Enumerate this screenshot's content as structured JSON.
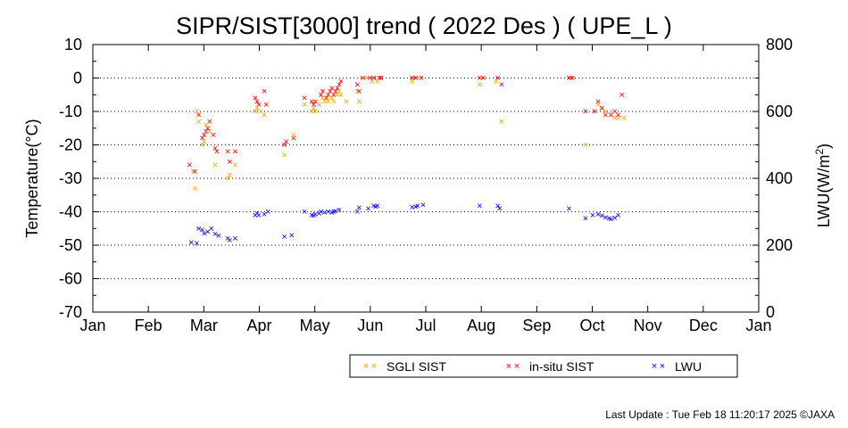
{
  "chart_data": {
    "type": "scatter",
    "title": "SIPR/SIST[3000] trend ( 2022 Des ) ( UPE_L )",
    "ylabel": "Temperature(°C)",
    "y2label_main": "LWU(W/m",
    "y2label_sup": "2",
    "y2label_end": ")",
    "ylim": [
      -70,
      10
    ],
    "y2lim": [
      0,
      800
    ],
    "y_ticks": [
      "10",
      "0",
      "-10",
      "-20",
      "-30",
      "-40",
      "-50",
      "-60",
      "-70"
    ],
    "y2_ticks": [
      "800",
      "600",
      "400",
      "200",
      "0"
    ],
    "x_ticks": [
      "Jan",
      "Feb",
      "Mar",
      "Apr",
      "May",
      "Jun",
      "Jul",
      "Aug",
      "Sep",
      "Oct",
      "Nov",
      "Dec",
      "Jan"
    ],
    "grid": "horizontal dotted",
    "legend_position": "bottom-right",
    "series": [
      {
        "name": "SGLI SIST",
        "color": "#ffa500",
        "axis": "left",
        "points": [
          [
            "2022-02-25",
            -28
          ],
          [
            "2022-02-26",
            -33
          ],
          [
            "2022-02-27",
            -10
          ],
          [
            "2022-02-28",
            -13
          ],
          [
            "2022-03-02",
            -20
          ],
          [
            "2022-03-03",
            -19
          ],
          [
            "2022-03-04",
            -14
          ],
          [
            "2022-03-06",
            -16
          ],
          [
            "2022-03-09",
            -26
          ],
          [
            "2022-03-16",
            -30
          ],
          [
            "2022-03-17",
            -29
          ],
          [
            "2022-03-20",
            -26
          ],
          [
            "2022-03-31",
            -10
          ],
          [
            "2022-04-01",
            -9
          ],
          [
            "2022-04-03",
            -10
          ],
          [
            "2022-04-05",
            -11
          ],
          [
            "2022-04-16",
            -23
          ],
          [
            "2022-04-21",
            -17
          ],
          [
            "2022-04-27",
            -8
          ],
          [
            "2022-05-01",
            -10
          ],
          [
            "2022-05-02",
            -9
          ],
          [
            "2022-05-03",
            -10
          ],
          [
            "2022-05-05",
            -8
          ],
          [
            "2022-05-07",
            -6
          ],
          [
            "2022-05-08",
            -7
          ],
          [
            "2022-05-10",
            -7
          ],
          [
            "2022-05-12",
            -6
          ],
          [
            "2022-05-13",
            -7
          ],
          [
            "2022-05-15",
            -5
          ],
          [
            "2022-05-16",
            -4
          ],
          [
            "2022-05-17",
            -5
          ],
          [
            "2022-05-20",
            -7
          ],
          [
            "2022-05-26",
            -4
          ],
          [
            "2022-05-27",
            -7
          ],
          [
            "2022-05-31",
            0
          ],
          [
            "2022-06-03",
            -1
          ],
          [
            "2022-06-04",
            0
          ],
          [
            "2022-06-06",
            -1
          ],
          [
            "2022-06-07",
            0
          ],
          [
            "2022-06-08",
            0
          ],
          [
            "2022-06-25",
            -1
          ],
          [
            "2022-06-27",
            0
          ],
          [
            "2022-06-30",
            0
          ],
          [
            "2022-08-01",
            -2
          ],
          [
            "2022-08-10",
            -1
          ],
          [
            "2022-08-13",
            -13
          ],
          [
            "2022-09-20",
            0
          ],
          [
            "2022-09-28",
            -20
          ],
          [
            "2022-10-05",
            -8
          ],
          [
            "2022-10-07",
            -9
          ],
          [
            "2022-10-09",
            -10
          ],
          [
            "2022-10-12",
            -11
          ],
          [
            "2022-10-14",
            -12
          ],
          [
            "2022-10-16",
            -12
          ],
          [
            "2022-10-19",
            -12
          ]
        ]
      },
      {
        "name": "in-situ SIST",
        "color": "#ff0000",
        "axis": "left",
        "points": [
          [
            "2022-02-23",
            -26
          ],
          [
            "2022-02-26",
            -28
          ],
          [
            "2022-02-28",
            -11
          ],
          [
            "2022-03-02",
            -18
          ],
          [
            "2022-03-03",
            -17
          ],
          [
            "2022-03-04",
            -16
          ],
          [
            "2022-03-05",
            -15
          ],
          [
            "2022-03-06",
            -13
          ],
          [
            "2022-03-08",
            -17
          ],
          [
            "2022-03-09",
            -21
          ],
          [
            "2022-03-10",
            -22
          ],
          [
            "2022-03-16",
            -22
          ],
          [
            "2022-03-17",
            -25
          ],
          [
            "2022-03-20",
            -22
          ],
          [
            "2022-03-31",
            -6
          ],
          [
            "2022-04-01",
            -7
          ],
          [
            "2022-04-02",
            -8
          ],
          [
            "2022-04-05",
            -4
          ],
          [
            "2022-04-06",
            -8
          ],
          [
            "2022-04-16",
            -20
          ],
          [
            "2022-04-17",
            -19
          ],
          [
            "2022-04-21",
            -18
          ],
          [
            "2022-04-27",
            -6
          ],
          [
            "2022-05-01",
            -7
          ],
          [
            "2022-05-02",
            -8
          ],
          [
            "2022-05-03",
            -7
          ],
          [
            "2022-05-06",
            -5
          ],
          [
            "2022-05-07",
            -4
          ],
          [
            "2022-05-09",
            -6
          ],
          [
            "2022-05-10",
            -5
          ],
          [
            "2022-05-11",
            -4
          ],
          [
            "2022-05-12",
            -3
          ],
          [
            "2022-05-13",
            -5
          ],
          [
            "2022-05-14",
            -4
          ],
          [
            "2022-05-15",
            -3
          ],
          [
            "2022-05-16",
            -2
          ],
          [
            "2022-05-17",
            -1
          ],
          [
            "2022-05-26",
            -2
          ],
          [
            "2022-05-27",
            -4
          ],
          [
            "2022-05-29",
            0
          ],
          [
            "2022-06-02",
            0
          ],
          [
            "2022-06-04",
            0
          ],
          [
            "2022-06-07",
            0
          ],
          [
            "2022-06-08",
            0
          ],
          [
            "2022-06-25",
            0
          ],
          [
            "2022-06-27",
            0
          ],
          [
            "2022-06-30",
            0
          ],
          [
            "2022-08-01",
            0
          ],
          [
            "2022-08-03",
            0
          ],
          [
            "2022-08-11",
            0
          ],
          [
            "2022-08-13",
            -2
          ],
          [
            "2022-09-19",
            0
          ],
          [
            "2022-09-21",
            0
          ],
          [
            "2022-09-28",
            -10
          ],
          [
            "2022-10-03",
            -10
          ],
          [
            "2022-10-05",
            -7
          ],
          [
            "2022-10-07",
            -9
          ],
          [
            "2022-10-09",
            -11
          ],
          [
            "2022-10-12",
            -11
          ],
          [
            "2022-10-14",
            -10
          ],
          [
            "2022-10-16",
            -11
          ],
          [
            "2022-10-18",
            -5
          ]
        ]
      },
      {
        "name": "LWU",
        "color": "#0000ff",
        "axis": "right",
        "points": [
          [
            "2022-02-24",
            208
          ],
          [
            "2022-02-27",
            205
          ],
          [
            "2022-02-28",
            250
          ],
          [
            "2022-03-02",
            245
          ],
          [
            "2022-03-03",
            235
          ],
          [
            "2022-03-05",
            240
          ],
          [
            "2022-03-07",
            250
          ],
          [
            "2022-03-09",
            233
          ],
          [
            "2022-03-11",
            228
          ],
          [
            "2022-03-16",
            220
          ],
          [
            "2022-03-17",
            215
          ],
          [
            "2022-03-20",
            220
          ],
          [
            "2022-03-31",
            290
          ],
          [
            "2022-04-01",
            295
          ],
          [
            "2022-04-02",
            290
          ],
          [
            "2022-04-05",
            292
          ],
          [
            "2022-04-07",
            300
          ],
          [
            "2022-04-16",
            225
          ],
          [
            "2022-04-20",
            230
          ],
          [
            "2022-04-27",
            300
          ],
          [
            "2022-05-01",
            290
          ],
          [
            "2022-05-02",
            288
          ],
          [
            "2022-05-03",
            292
          ],
          [
            "2022-05-05",
            295
          ],
          [
            "2022-05-06",
            300
          ],
          [
            "2022-05-08",
            298
          ],
          [
            "2022-05-10",
            300
          ],
          [
            "2022-05-12",
            298
          ],
          [
            "2022-05-13",
            300
          ],
          [
            "2022-05-14",
            302
          ],
          [
            "2022-05-16",
            305
          ],
          [
            "2022-05-26",
            300
          ],
          [
            "2022-05-27",
            312
          ],
          [
            "2022-06-01",
            310
          ],
          [
            "2022-06-04",
            318
          ],
          [
            "2022-06-05",
            315
          ],
          [
            "2022-06-06",
            318
          ],
          [
            "2022-06-25",
            313
          ],
          [
            "2022-06-27",
            315
          ],
          [
            "2022-06-28",
            318
          ],
          [
            "2022-07-01",
            320
          ],
          [
            "2022-08-01",
            318
          ],
          [
            "2022-08-11",
            318
          ],
          [
            "2022-08-12",
            310
          ],
          [
            "2022-09-19",
            310
          ],
          [
            "2022-09-28",
            280
          ],
          [
            "2022-10-02",
            290
          ],
          [
            "2022-10-05",
            292
          ],
          [
            "2022-10-07",
            288
          ],
          [
            "2022-10-09",
            283
          ],
          [
            "2022-10-11",
            280
          ],
          [
            "2022-10-12",
            278
          ],
          [
            "2022-10-14",
            282
          ],
          [
            "2022-10-16",
            290
          ]
        ]
      }
    ]
  },
  "footer": "Last Update : Tue Feb 18 11:20:17 2025  ©JAXA"
}
